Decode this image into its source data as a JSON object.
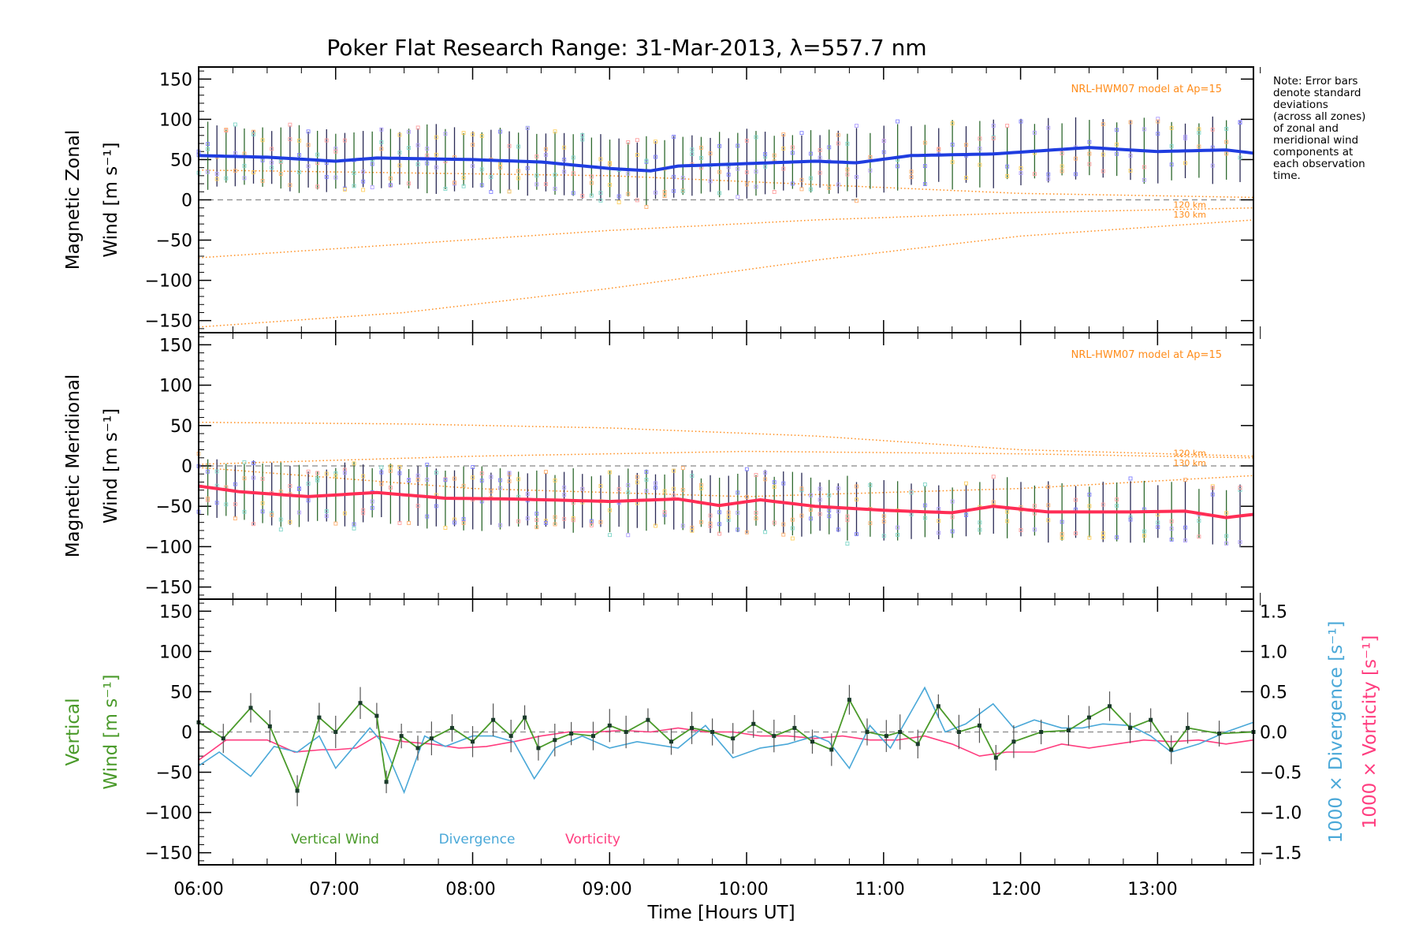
{
  "title": "Poker Flat Research Range: 31-Mar-2013, λ=557.7 nm",
  "note_lines": [
    "Note: Error bars",
    "denote standard",
    "deviations",
    "(across all zones)",
    "of zonal and",
    "meridional wind",
    "components at",
    "each observation",
    "time."
  ],
  "colors": {
    "zonal": "#1f3de0",
    "meridional": "#ff2d55",
    "vertical": "#4a9a2a",
    "divergence": "#4aa8d8",
    "vorticity": "#ff3d7f",
    "model": "#ff8c1a",
    "errorbar": "#555555",
    "zero_line": "#888888"
  },
  "chart_data": [
    {
      "id": "zonal",
      "type": "line",
      "ylabel_line1": "Magnetic Zonal",
      "ylabel_line2": "Wind [m s⁻¹]",
      "ylim": [
        -165,
        165
      ],
      "yticks": [
        "150",
        "100",
        "50",
        "0",
        "−50",
        "−100",
        "−150"
      ],
      "model_label": "NRL-HWM07 model at Ap=15",
      "alt_labels": [
        "120 km",
        "130 km"
      ],
      "anchors": {
        "x": [
          6.0,
          6.5,
          7.0,
          7.3,
          8.0,
          8.5,
          9.0,
          9.3,
          9.5,
          10.0,
          10.5,
          10.8,
          11.2,
          11.8,
          12.5,
          13.0,
          13.5,
          13.7
        ],
        "y": [
          55,
          53,
          48,
          52,
          50,
          47,
          39,
          36,
          42,
          45,
          48,
          46,
          55,
          57,
          65,
          60,
          62,
          58
        ]
      },
      "model_curves": [
        {
          "x": [
            6.0,
            9.0,
            12.0,
            13.7
          ],
          "y": [
            37,
            30,
            8,
            3
          ]
        },
        {
          "x": [
            6.0,
            7.5,
            9.0,
            10.5,
            12.0,
            13.7
          ],
          "y": [
            -72,
            -55,
            -38,
            -25,
            -16,
            -10
          ]
        },
        {
          "x": [
            6.0,
            7.5,
            9.0,
            10.5,
            12.0,
            13.7
          ],
          "y": [
            -158,
            -140,
            -110,
            -75,
            -45,
            -25
          ]
        }
      ]
    },
    {
      "id": "meridional",
      "type": "line",
      "ylabel_line1": "Magnetic Meridional",
      "ylabel_line2": "Wind [m s⁻¹]",
      "ylim": [
        -165,
        165
      ],
      "yticks": [
        "150",
        "100",
        "50",
        "0",
        "−50",
        "−100",
        "−150"
      ],
      "model_label": "NRL-HWM07 model at Ap=15",
      "alt_labels": [
        "120 km",
        "130 km"
      ],
      "anchors": {
        "x": [
          6.0,
          6.3,
          6.8,
          7.3,
          7.8,
          8.3,
          9.0,
          9.5,
          9.8,
          10.1,
          10.5,
          11.0,
          11.5,
          11.8,
          12.2,
          12.8,
          13.2,
          13.5,
          13.7
        ],
        "y": [
          -25,
          -32,
          -38,
          -33,
          -40,
          -41,
          -44,
          -41,
          -49,
          -42,
          -50,
          -55,
          -58,
          -50,
          -57,
          -57,
          -56,
          -64,
          -60
        ]
      },
      "model_curves": [
        {
          "x": [
            6.0,
            7.5,
            9.0,
            10.5,
            12.0,
            13.7
          ],
          "y": [
            54,
            52,
            47,
            37,
            20,
            12
          ]
        },
        {
          "x": [
            6.0,
            8.0,
            10.0,
            12.0,
            13.7
          ],
          "y": [
            2,
            12,
            18,
            15,
            10
          ]
        },
        {
          "x": [
            6.0,
            8.0,
            10.0,
            12.0,
            13.7
          ],
          "y": [
            -2,
            -28,
            -38,
            -28,
            -12
          ]
        }
      ]
    },
    {
      "id": "vertical",
      "type": "line",
      "ylabel_line1": "Vertical",
      "ylabel_line2": "Wind [m s⁻¹]",
      "ylim": [
        -165,
        165
      ],
      "yticks": [
        "150",
        "100",
        "50",
        "0",
        "−50",
        "−100",
        "−150"
      ],
      "y2label_divergence": "1000 × Divergence [s⁻¹]",
      "y2label_vorticity": "1000 × Vorticity [s⁻¹]",
      "y2lim": [
        -1.65,
        1.65
      ],
      "y2ticks": [
        "1.5",
        "1.0",
        "0.5",
        "0.0",
        "−0.5",
        "−1.0",
        "−1.5"
      ],
      "legend": [
        "Vertical Wind",
        "Divergence",
        "Vorticity"
      ],
      "vertical_wind": {
        "x": [
          6.0,
          6.18,
          6.38,
          6.52,
          6.72,
          6.88,
          7.0,
          7.18,
          7.3,
          7.37,
          7.48,
          7.6,
          7.7,
          7.85,
          8.0,
          8.15,
          8.28,
          8.38,
          8.48,
          8.6,
          8.72,
          8.88,
          9.0,
          9.12,
          9.28,
          9.45,
          9.6,
          9.75,
          9.9,
          10.05,
          10.2,
          10.35,
          10.48,
          10.62,
          10.75,
          10.88,
          11.02,
          11.12,
          11.25,
          11.4,
          11.55,
          11.7,
          11.82,
          11.95,
          12.15,
          12.35,
          12.5,
          12.65,
          12.8,
          12.95,
          13.1,
          13.22,
          13.45,
          13.7
        ],
        "y": [
          12,
          -8,
          30,
          7,
          -73,
          18,
          0,
          36,
          20,
          -62,
          -5,
          -20,
          -8,
          5,
          -12,
          15,
          -5,
          18,
          -20,
          -10,
          -2,
          -5,
          8,
          0,
          15,
          -12,
          5,
          0,
          -8,
          10,
          -5,
          5,
          -12,
          -22,
          40,
          0,
          -5,
          0,
          -15,
          32,
          0,
          8,
          -32,
          -12,
          0,
          2,
          18,
          32,
          5,
          15,
          -22,
          5,
          -2,
          0
        ]
      },
      "divergence": {
        "x": [
          6.0,
          6.15,
          6.38,
          6.55,
          6.72,
          6.88,
          7.0,
          7.15,
          7.25,
          7.35,
          7.5,
          7.65,
          7.8,
          8.0,
          8.15,
          8.3,
          8.45,
          8.6,
          8.8,
          9.0,
          9.2,
          9.5,
          9.7,
          9.9,
          10.1,
          10.3,
          10.5,
          10.6,
          10.75,
          10.9,
          11.05,
          11.2,
          11.3,
          11.45,
          11.6,
          11.8,
          11.95,
          12.1,
          12.3,
          12.45,
          12.6,
          12.8,
          12.95,
          13.1,
          13.3,
          13.5,
          13.7
        ],
        "y": [
          -0.42,
          -0.25,
          -0.55,
          -0.18,
          -0.25,
          -0.05,
          -0.45,
          -0.15,
          0.05,
          -0.15,
          -0.75,
          -0.05,
          -0.18,
          -0.05,
          -0.05,
          -0.12,
          -0.58,
          -0.2,
          -0.05,
          -0.2,
          -0.12,
          -0.2,
          0.08,
          -0.32,
          -0.2,
          -0.15,
          -0.05,
          -0.12,
          -0.45,
          0.08,
          -0.2,
          0.25,
          0.55,
          0.0,
          0.1,
          0.35,
          0.05,
          0.15,
          0.05,
          0.05,
          0.1,
          0.08,
          -0.05,
          -0.25,
          -0.15,
          0.0,
          0.12
        ]
      },
      "vorticity": {
        "x": [
          6.0,
          6.2,
          6.5,
          6.7,
          6.9,
          7.0,
          7.15,
          7.3,
          7.5,
          7.7,
          7.9,
          8.1,
          8.3,
          8.5,
          8.7,
          8.9,
          9.1,
          9.3,
          9.5,
          9.7,
          9.9,
          10.1,
          10.3,
          10.5,
          10.7,
          10.9,
          11.1,
          11.3,
          11.5,
          11.7,
          11.9,
          12.1,
          12.3,
          12.5,
          12.7,
          12.9,
          13.1,
          13.3,
          13.5,
          13.7
        ],
        "y": [
          -0.35,
          -0.1,
          -0.1,
          -0.25,
          -0.22,
          -0.22,
          -0.2,
          -0.05,
          -0.12,
          -0.15,
          -0.2,
          -0.18,
          -0.12,
          -0.05,
          0.0,
          0.0,
          0.02,
          0.0,
          0.05,
          0.0,
          0.0,
          -0.05,
          -0.05,
          -0.08,
          -0.05,
          -0.1,
          -0.1,
          -0.05,
          -0.15,
          -0.3,
          -0.25,
          -0.25,
          -0.15,
          -0.2,
          -0.15,
          -0.1,
          -0.12,
          -0.1,
          -0.15,
          -0.1
        ]
      }
    }
  ],
  "x_axis": {
    "label": "Time [Hours UT]",
    "xlim": [
      6.0,
      13.7
    ],
    "ticks": [
      6,
      7,
      8,
      9,
      10,
      11,
      12,
      13
    ],
    "tick_labels": [
      "06:00",
      "07:00",
      "08:00",
      "09:00",
      "10:00",
      "11:00",
      "12:00",
      "13:00"
    ]
  }
}
